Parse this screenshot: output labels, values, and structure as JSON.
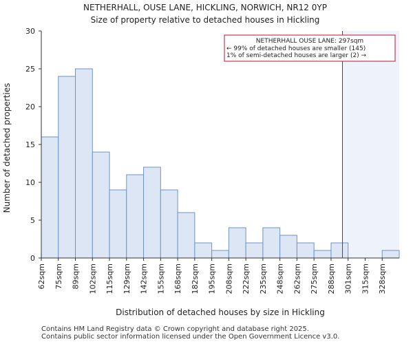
{
  "chart_data": {
    "type": "bar",
    "title": "NETHERHALL, OUSE LANE, HICKLING, NORWICH, NR12 0YP",
    "subtitle": "Size of property relative to detached houses in Hickling",
    "xlabel": "Distribution of detached houses by size in Hickling",
    "ylabel": "Number of detached properties",
    "categories": [
      "62sqm",
      "75sqm",
      "89sqm",
      "102sqm",
      "115sqm",
      "129sqm",
      "142sqm",
      "155sqm",
      "168sqm",
      "182sqm",
      "195sqm",
      "208sqm",
      "222sqm",
      "235sqm",
      "248sqm",
      "262sqm",
      "275sqm",
      "288sqm",
      "301sqm",
      "315sqm",
      "328sqm"
    ],
    "values": [
      16,
      24,
      25,
      14,
      9,
      11,
      12,
      9,
      6,
      2,
      1,
      4,
      2,
      4,
      3,
      2,
      1,
      2,
      0,
      0,
      1
    ],
    "ylim": [
      0,
      30
    ],
    "yticks": [
      0,
      5,
      10,
      15,
      20,
      25,
      30
    ],
    "grid": false,
    "bar_fill": "#dce6f4",
    "bar_stroke": "#6f93c6",
    "marker": {
      "value": 297,
      "color": "#c0102a",
      "shade_color": "#eef3fb"
    },
    "annotation": {
      "lines": [
        "NETHERHALL OUSE LANE: 297sqm",
        "← 99% of detached houses are smaller (145)",
        "1% of semi-detached houses are larger (2) →"
      ],
      "border_color": "#c0102a"
    }
  },
  "footer": {
    "line1": "Contains HM Land Registry data © Crown copyright and database right 2025.",
    "line2": "Contains public sector information licensed under the Open Government Licence v3.0."
  }
}
